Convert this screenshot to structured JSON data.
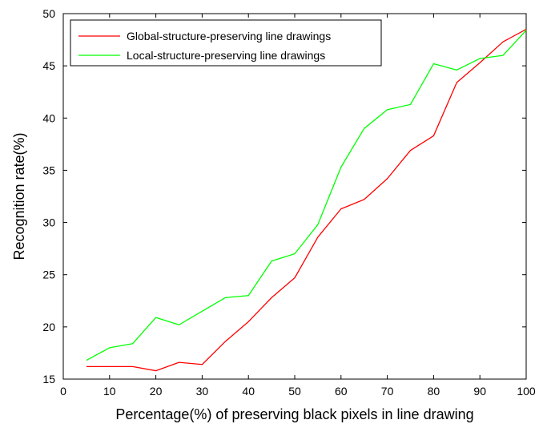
{
  "chart_data": {
    "type": "line",
    "xlabel": "Percentage(%) of preserving black pixels in line drawing",
    "ylabel": "Recognition rate(%)",
    "xlim": [
      0,
      100
    ],
    "ylim": [
      15,
      50
    ],
    "xticks": [
      0,
      10,
      20,
      30,
      40,
      50,
      60,
      70,
      80,
      90,
      100
    ],
    "yticks": [
      15,
      20,
      25,
      30,
      35,
      40,
      45,
      50
    ],
    "grid": false,
    "legend_position": "top-left",
    "x": [
      5,
      10,
      15,
      20,
      25,
      30,
      35,
      40,
      45,
      50,
      55,
      60,
      65,
      70,
      75,
      80,
      85,
      90,
      95,
      100
    ],
    "series": [
      {
        "name": "Global-structure-preserving line drawings",
        "color": "#ff0000",
        "values": [
          16.2,
          16.2,
          16.2,
          15.8,
          16.6,
          16.4,
          18.6,
          20.5,
          22.8,
          24.7,
          28.6,
          31.3,
          32.2,
          34.2,
          36.9,
          38.3,
          43.4,
          45.3,
          47.3,
          48.5
        ]
      },
      {
        "name": "Local-structure-preserving line drawings",
        "color": "#00ff00",
        "values": [
          16.8,
          18.0,
          18.4,
          20.9,
          20.2,
          21.5,
          22.8,
          23.0,
          26.3,
          27.0,
          29.8,
          35.3,
          39.0,
          40.8,
          41.3,
          45.2,
          44.6,
          45.7,
          46.0,
          48.4
        ]
      }
    ]
  }
}
